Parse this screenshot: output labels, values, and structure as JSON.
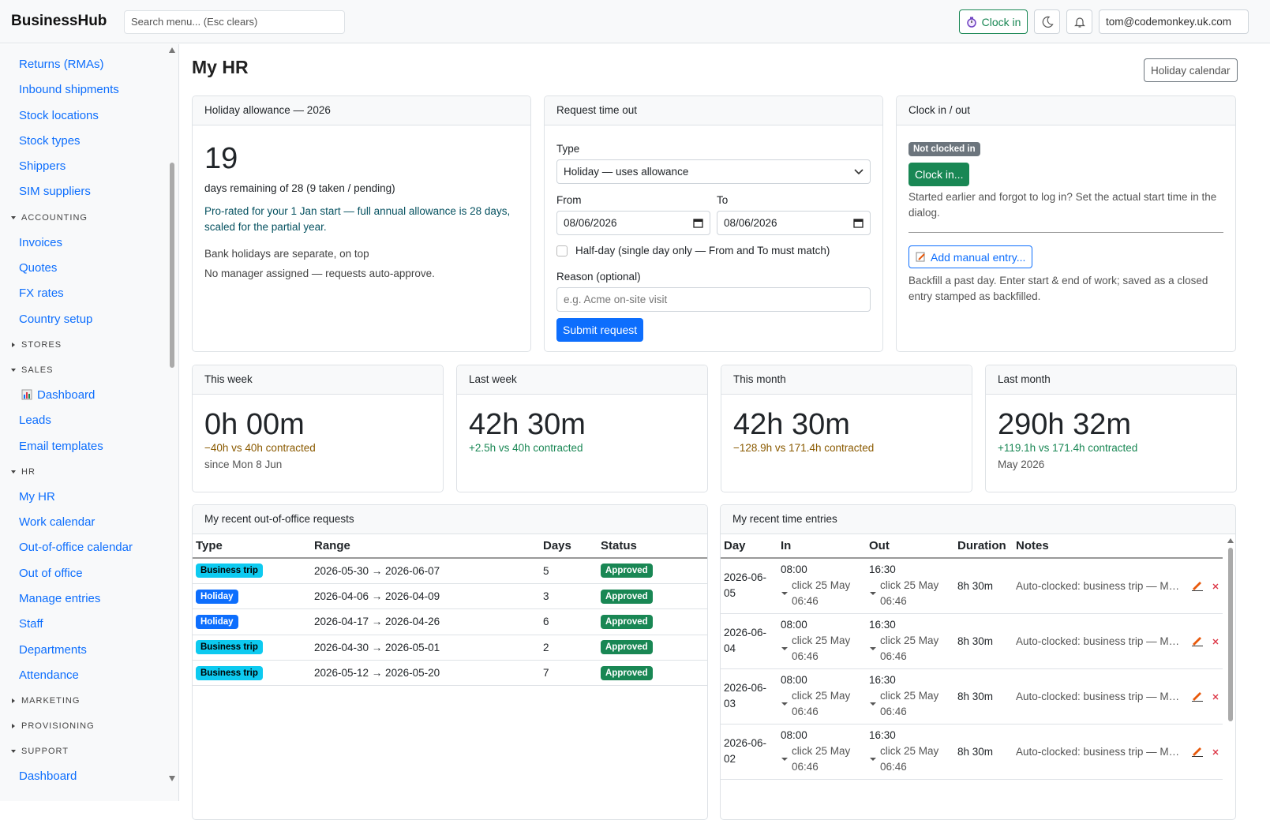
{
  "header": {
    "brand": "BusinessHub",
    "search_placeholder": "Search menu... (Esc clears)",
    "clock_in": "Clock in",
    "user": "tom@codemonkey.uk.com"
  },
  "sidebar": {
    "top_links": [
      "Returns (RMAs)",
      "Inbound shipments",
      "Stock locations",
      "Stock types",
      "Shippers",
      "SIM suppliers"
    ],
    "sections": [
      {
        "title": "ACCOUNTING",
        "links": [
          "Invoices",
          "Quotes",
          "FX rates",
          "Country setup"
        ]
      },
      {
        "title": "STORES",
        "links": []
      },
      {
        "title": "SALES",
        "links": [
          "Dashboard",
          "Leads",
          "Email templates"
        ]
      },
      {
        "title": "HR",
        "links": [
          "My HR",
          "Work calendar",
          "Out-of-office calendar",
          "Out of office",
          "Manage entries",
          "Staff",
          "Departments",
          "Attendance"
        ]
      },
      {
        "title": "MARKETING",
        "links": []
      },
      {
        "title": "PROVISIONING",
        "links": []
      },
      {
        "title": "SUPPORT",
        "links": [
          "Dashboard"
        ]
      }
    ]
  },
  "page": {
    "title": "My HR",
    "holiday_calendar": "Holiday calendar"
  },
  "allowance": {
    "title": "Holiday allowance — 2026",
    "days": "19",
    "remaining": "days remaining of 28 (9 taken / pending)",
    "note": "Pro-rated for your 1 Jan start — full annual allowance is 28 days, scaled for the partial year.",
    "lines": [
      "Bank holidays are separate, on top",
      "No manager assigned — requests auto-approve."
    ]
  },
  "request": {
    "title": "Request time out",
    "type_label": "Type",
    "type_value": "Holiday — uses allowance",
    "from_label": "From",
    "from_value": "08/06/2026",
    "to_label": "To",
    "to_value": "08/06/2026",
    "half_day": "Half-day (single day only — From and To must match)",
    "reason_label": "Reason (optional)",
    "reason_placeholder": "e.g. Acme on-site visit",
    "submit": "Submit request"
  },
  "clock": {
    "title": "Clock in / out",
    "badge": "Not clocked in",
    "button": "Clock in...",
    "help": "Started earlier and forgot to log in? Set the actual start time in the dialog.",
    "manual_button": "Add manual entry...",
    "manual_help": "Backfill a past day. Enter start & end of work; saved as a closed entry stamped as backfilled."
  },
  "stats": [
    {
      "title": "This week",
      "value": "0h 00m",
      "delta": "−40h vs 40h contracted",
      "delta_color": "#8a5a00",
      "sub": "since Mon 8 Jun"
    },
    {
      "title": "Last week",
      "value": "42h 30m",
      "delta": "+2.5h vs 40h contracted",
      "delta_color": "#198754"
    },
    {
      "title": "This month",
      "value": "42h 30m",
      "delta": "−128.9h vs 171.4h contracted",
      "delta_color": "#8a5a00"
    },
    {
      "title": "Last month",
      "value": "290h 32m",
      "delta": "+119.1h vs 171.4h contracted",
      "delta_color": "#198754",
      "sub": "May 2026"
    }
  ],
  "requests": {
    "title": "My recent out-of-office requests",
    "columns": [
      "Type",
      "Range",
      "Days",
      "Status"
    ],
    "rows": [
      {
        "type": "Business trip",
        "type_color": "#0dcaf0",
        "range": "2026-05-30 → 2026-06-07",
        "days": "5",
        "status": "Approved"
      },
      {
        "type": "Holiday",
        "type_color": "#0d6efd",
        "range": "2026-04-06 → 2026-04-09",
        "days": "3",
        "status": "Approved"
      },
      {
        "type": "Holiday",
        "type_color": "#0d6efd",
        "range": "2026-04-17 → 2026-04-26",
        "days": "6",
        "status": "Approved"
      },
      {
        "type": "Business trip",
        "type_color": "#0dcaf0",
        "range": "2026-04-30 → 2026-05-01",
        "days": "2",
        "status": "Approved"
      },
      {
        "type": "Business trip",
        "type_color": "#0dcaf0",
        "range": "2026-05-12 → 2026-05-20",
        "days": "7",
        "status": "Approved"
      }
    ]
  },
  "entries": {
    "title": "My recent time entries",
    "columns": [
      "Day",
      "In",
      "Out",
      "Duration",
      "Notes"
    ],
    "rows": [
      {
        "day": "2026-06-05",
        "in": "08:00",
        "in_source": "click 25 May 06:46",
        "out": "16:30",
        "out_source": "click 25 May 06:46",
        "duration": "8h 30m",
        "notes": "Auto-clocked: business trip — M…"
      },
      {
        "day": "2026-06-04",
        "in": "08:00",
        "in_source": "click 25 May 06:46",
        "out": "16:30",
        "out_source": "click 25 May 06:46",
        "duration": "8h 30m",
        "notes": "Auto-clocked: business trip — M…"
      },
      {
        "day": "2026-06-03",
        "in": "08:00",
        "in_source": "click 25 May 06:46",
        "out": "16:30",
        "out_source": "click 25 May 06:46",
        "duration": "8h 30m",
        "notes": "Auto-clocked: business trip — M…"
      },
      {
        "day": "2026-06-02",
        "in": "08:00",
        "in_source": "click 25 May 06:46",
        "out": "16:30",
        "out_source": "click 25 May 06:46",
        "duration": "8h 30m",
        "notes": "Auto-clocked: business trip — M…"
      }
    ]
  }
}
